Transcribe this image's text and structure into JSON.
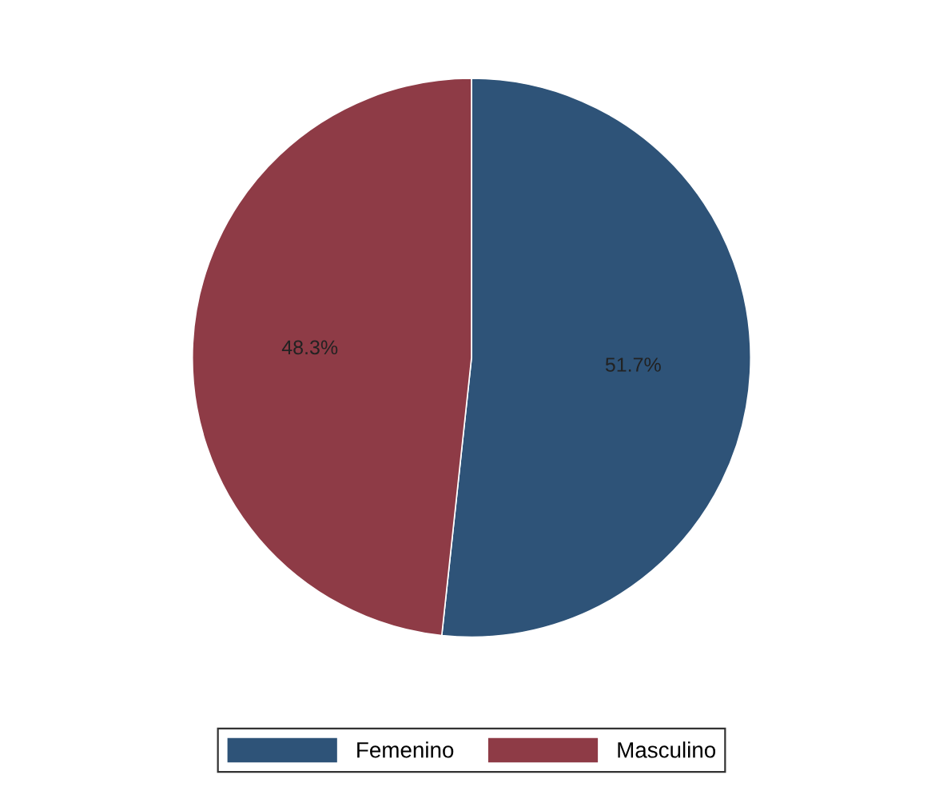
{
  "chart_data": {
    "type": "pie",
    "categories": [
      "Femenino",
      "Masculino"
    ],
    "values": [
      51.7,
      48.3
    ],
    "colors": [
      "#2e5378",
      "#8e3b46"
    ],
    "value_labels": [
      "51.7%",
      "48.3%"
    ],
    "legend": "bottom"
  }
}
